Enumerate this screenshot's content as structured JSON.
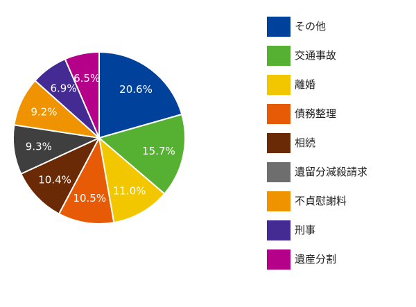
{
  "chart_data": {
    "type": "pie",
    "categories": [
      "その他",
      "交通事故",
      "離婚",
      "債務整理",
      "相続",
      "遺留分減殺請求",
      "不貞慰謝料",
      "刑事",
      "遺産分割"
    ],
    "values": [
      20.6,
      15.7,
      11.0,
      10.5,
      10.4,
      9.3,
      9.2,
      6.9,
      6.5
    ],
    "labels": [
      "20.6%",
      "15.7%",
      "11.0%",
      "10.5%",
      "10.4%",
      "9.3%",
      "9.2%",
      "6.9%",
      "6.5%"
    ],
    "colors": [
      "#00429b",
      "#56b132",
      "#f2c700",
      "#e85b06",
      "#6a2a06",
      "#3f3f3f",
      "#ef9400",
      "#432b93",
      "#b5008a"
    ],
    "legend_colors": [
      "#00429b",
      "#56b132",
      "#f2c700",
      "#e85b06",
      "#6a2a06",
      "#6e6e6e",
      "#ef9400",
      "#432b93",
      "#b5008a"
    ],
    "legend_position": "right",
    "start": "top",
    "direction": "clockwise"
  }
}
